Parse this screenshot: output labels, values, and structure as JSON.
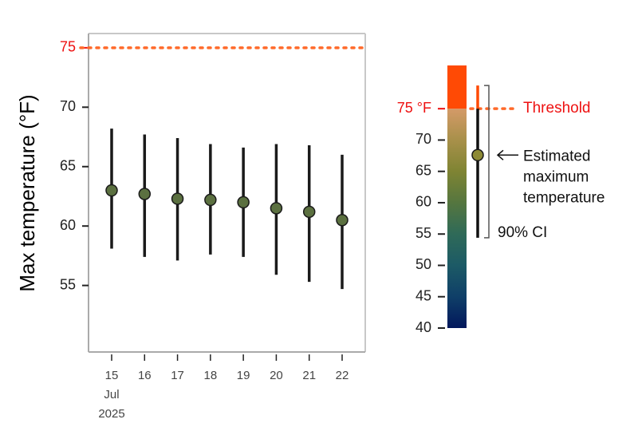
{
  "chart_data": {
    "type": "errorbar",
    "ylabel": "Max temperature (°F)",
    "categories": [
      "15",
      "16",
      "17",
      "18",
      "19",
      "20",
      "21",
      "22"
    ],
    "first_tick_sublabels": [
      "Jul",
      "2025"
    ],
    "series": [
      {
        "values": [
          63.0,
          62.7,
          62.3,
          62.2,
          62.0,
          61.5,
          61.2,
          60.5
        ],
        "lower": [
          58.1,
          57.4,
          57.1,
          57.6,
          57.4,
          55.9,
          55.3,
          54.7
        ],
        "upper": [
          68.2,
          67.7,
          67.4,
          66.9,
          66.6,
          66.9,
          66.8,
          66.0
        ],
        "color": "#5b7040"
      }
    ],
    "ylim": [
      49.4,
      76.2
    ],
    "yticks": [
      55,
      60,
      65,
      70,
      75
    ],
    "threshold": {
      "value": 75,
      "color": "#ff6a2a",
      "label_color": "#ee1111"
    },
    "colorbar": {
      "lim": [
        40,
        81.9
      ],
      "ticks": [
        40,
        45,
        50,
        55,
        60,
        65,
        70,
        {
          "value": 75,
          "label": "75 °F"
        }
      ],
      "colors": [
        "#02185c",
        "#0f3f68",
        "#1c5a66",
        "#2f6a58",
        "#55763f",
        "#7f8433",
        "#a8904a",
        "#d49a68"
      ],
      "above_color": "#ff4a05"
    },
    "key": {
      "value": 67.6,
      "lower": 54.4,
      "upper": 78.7,
      "color": "#8d8a35",
      "threshold_text": "Threshold",
      "point_text": [
        "Estimated",
        "maximum",
        "temperature"
      ],
      "ci_text": "90% CI"
    }
  }
}
